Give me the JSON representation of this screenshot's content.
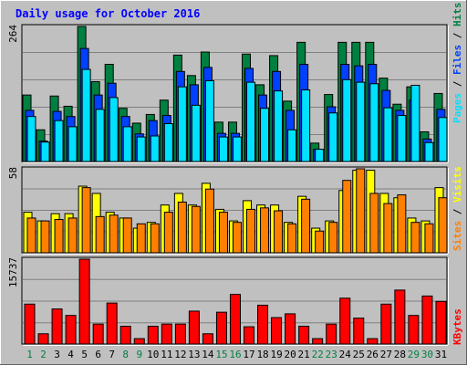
{
  "title": "Daily usage for October 2016",
  "colors": {
    "title": "#0000ff",
    "background": "#c0c0c0",
    "plot_bg": "#c0c0c0",
    "grid": "#808080",
    "hits": "#008040",
    "files": "#0040ff",
    "pages": "#00e0ff",
    "visits": "#ffff00",
    "sites": "#ff8000",
    "kbytes": "#ff0000",
    "weekday_label": "#000000",
    "weekend_label": "#008040",
    "bar_outline": "#000000"
  },
  "legends": {
    "top": {
      "pages": "Pages",
      "files": "Files",
      "hits": "Hits",
      "sep": " / "
    },
    "middle": {
      "sites": "Sites",
      "visits": "Visits",
      "sep": " / "
    },
    "bottom": {
      "kbytes": "KBytes"
    }
  },
  "chart_data": [
    {
      "type": "bar",
      "panel": "top",
      "ymax_label": "264",
      "ylim": [
        0,
        264
      ],
      "grid": true,
      "categories": [
        "1",
        "2",
        "3",
        "4",
        "5",
        "6",
        "7",
        "8",
        "9",
        "10",
        "11",
        "12",
        "13",
        "14",
        "15",
        "16",
        "17",
        "18",
        "19",
        "20",
        "21",
        "22",
        "23",
        "24",
        "25",
        "26",
        "27",
        "28",
        "29",
        "30",
        "31"
      ],
      "series": [
        {
          "name": "Hits",
          "values": [
            130,
            62,
            128,
            108,
            264,
            156,
            190,
            104,
            75,
            92,
            120,
            208,
            168,
            214,
            77,
            77,
            210,
            150,
            207,
            118,
            233,
            36,
            131,
            233,
            233,
            233,
            163,
            112,
            146,
            58,
            133
          ]
        },
        {
          "name": "Files",
          "values": [
            100,
            40,
            98,
            88,
            221,
            130,
            153,
            88,
            54,
            80,
            90,
            176,
            150,
            184,
            55,
            55,
            182,
            130,
            176,
            100,
            190,
            24,
            107,
            190,
            187,
            190,
            139,
            100,
            120,
            44,
            102
          ]
        },
        {
          "name": "Pages",
          "values": [
            88,
            38,
            80,
            68,
            180,
            102,
            125,
            68,
            48,
            50,
            74,
            146,
            110,
            158,
            48,
            48,
            155,
            104,
            138,
            62,
            140,
            24,
            95,
            160,
            155,
            152,
            105,
            90,
            149,
            37,
            86
          ]
        }
      ]
    },
    {
      "type": "bar",
      "panel": "middle",
      "ymax_label": "58",
      "ylim": [
        0,
        58
      ],
      "grid": true,
      "categories": [
        "1",
        "2",
        "3",
        "4",
        "5",
        "6",
        "7",
        "8",
        "9",
        "10",
        "11",
        "12",
        "13",
        "14",
        "15",
        "16",
        "17",
        "18",
        "19",
        "20",
        "21",
        "22",
        "23",
        "24",
        "25",
        "26",
        "27",
        "28",
        "29",
        "30",
        "31"
      ],
      "series": [
        {
          "name": "Visits",
          "values": [
            28,
            22,
            27,
            27,
            46,
            41,
            28,
            24,
            17,
            21,
            33,
            41,
            33,
            48,
            30,
            22,
            36,
            33,
            33,
            21,
            39,
            17,
            22,
            43,
            57,
            57,
            41,
            38,
            24,
            22,
            45
          ]
        },
        {
          "name": "Sites",
          "values": [
            24,
            22,
            23,
            24,
            45,
            25,
            26,
            24,
            20,
            20,
            28,
            35,
            32,
            44,
            28,
            21,
            30,
            31,
            29,
            20,
            37,
            15,
            21,
            50,
            58,
            41,
            34,
            40,
            21,
            20,
            38
          ]
        }
      ]
    },
    {
      "type": "bar",
      "panel": "bottom",
      "ymax_label": "15737",
      "ylim": [
        0,
        15737
      ],
      "grid": true,
      "categories": [
        "1",
        "2",
        "3",
        "4",
        "5",
        "6",
        "7",
        "8",
        "9",
        "10",
        "11",
        "12",
        "13",
        "14",
        "15",
        "16",
        "17",
        "18",
        "19",
        "20",
        "21",
        "22",
        "23",
        "24",
        "25",
        "26",
        "27",
        "28",
        "29",
        "30",
        "31"
      ],
      "series": [
        {
          "name": "KBytes",
          "values": [
            7400,
            1900,
            6500,
            5300,
            15737,
            3700,
            7600,
            3300,
            1000,
            3300,
            3700,
            3700,
            6100,
            1900,
            5900,
            9200,
            3200,
            7200,
            4900,
            5600,
            3300,
            1000,
            3700,
            8500,
            4800,
            1000,
            7400,
            10000,
            5300,
            8900,
            0
          ]
        }
      ]
    }
  ],
  "x_axis": {
    "labels": [
      "1",
      "2",
      "3",
      "4",
      "5",
      "6",
      "7",
      "8",
      "9",
      "10",
      "11",
      "12",
      "13",
      "14",
      "15",
      "16",
      "17",
      "18",
      "19",
      "20",
      "21",
      "22",
      "23",
      "24",
      "25",
      "26",
      "27",
      "28",
      "29",
      "30",
      "31"
    ],
    "weekend_days": [
      1,
      2,
      8,
      9,
      15,
      16,
      22,
      23,
      29,
      30
    ]
  }
}
